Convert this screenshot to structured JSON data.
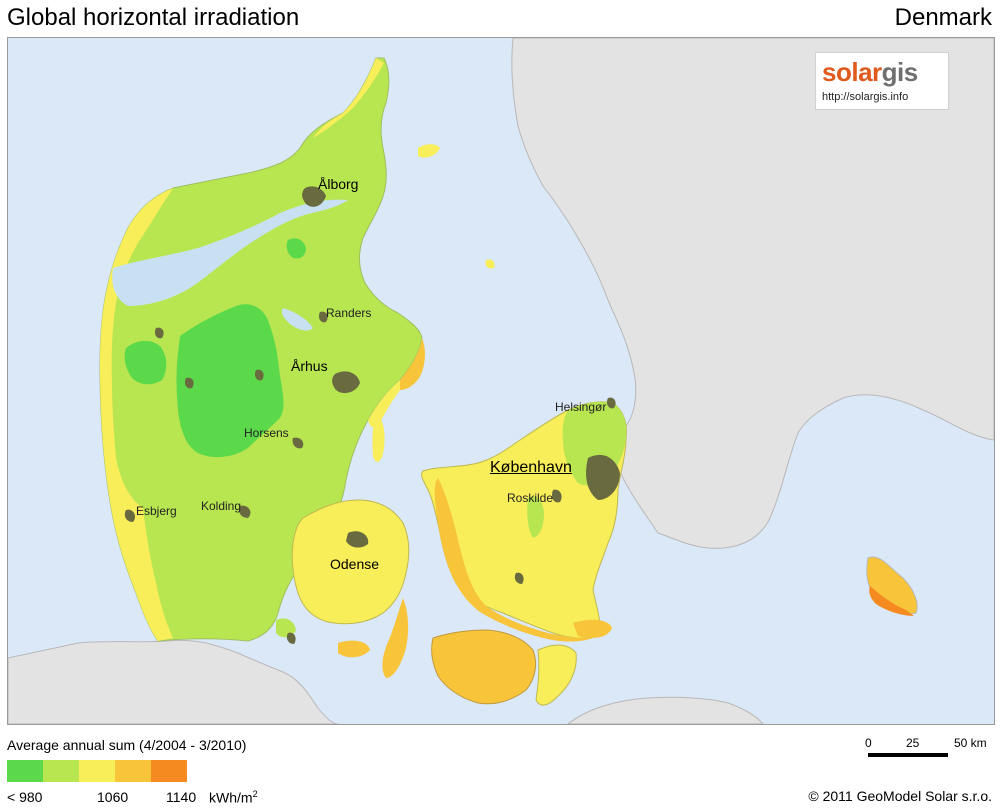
{
  "header": {
    "title": "Global horizontal irradiation",
    "region": "Denmark"
  },
  "brand": {
    "logo_part1": "solar",
    "logo_part2": "gis",
    "url": "http://solargis.info"
  },
  "colors": {
    "sea": "#dbe8f7",
    "land_other": "#e3e3e3",
    "urban": "#6a6a40",
    "lake": "#c7e1f3"
  },
  "cities": [
    {
      "name": "Ålborg",
      "rank": "major"
    },
    {
      "name": "Randers",
      "rank": "minor"
    },
    {
      "name": "Århus",
      "rank": "major"
    },
    {
      "name": "Horsens",
      "rank": "minor"
    },
    {
      "name": "Esbjerg",
      "rank": "minor"
    },
    {
      "name": "Kolding",
      "rank": "minor"
    },
    {
      "name": "Odense",
      "rank": "major"
    },
    {
      "name": "Helsingør",
      "rank": "minor"
    },
    {
      "name": "København",
      "rank": "capital"
    },
    {
      "name": "Roskilde",
      "rank": "minor"
    }
  ],
  "legend": {
    "title": "Average annual sum (4/2004 - 3/2010)",
    "classes": [
      {
        "color": "#5bd94a"
      },
      {
        "color": "#b8e650"
      },
      {
        "color": "#f7ee5a"
      },
      {
        "color": "#f7c43a"
      },
      {
        "color": "#f58a20"
      }
    ],
    "ticks": [
      "< 980",
      "1060",
      "1140"
    ],
    "unit_base": "kWh/m",
    "unit_exp": "2"
  },
  "scalebar": {
    "labels": [
      "0",
      "25",
      "50 km"
    ]
  },
  "copyright": "© 2011 GeoModel Solar s.r.o."
}
